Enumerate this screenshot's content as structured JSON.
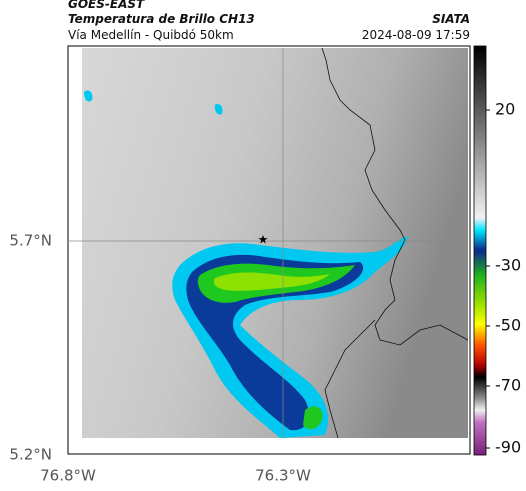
{
  "header": {
    "source": "GOES-EAST",
    "title": "Temperatura de Brillo CH13",
    "subtitle": "Vía Medellín - Quibdó 50km",
    "organization": "SIATA",
    "datetime": "2024-08-09 17:59"
  },
  "map": {
    "lat_labels": [
      "5.7°N",
      "5.2°N"
    ],
    "lon_labels": [
      "76.8°W",
      "76.3°W"
    ]
  },
  "colorbar": {
    "tick_labels": [
      "20",
      "-30",
      "-50",
      "-70",
      "-90"
    ]
  }
}
